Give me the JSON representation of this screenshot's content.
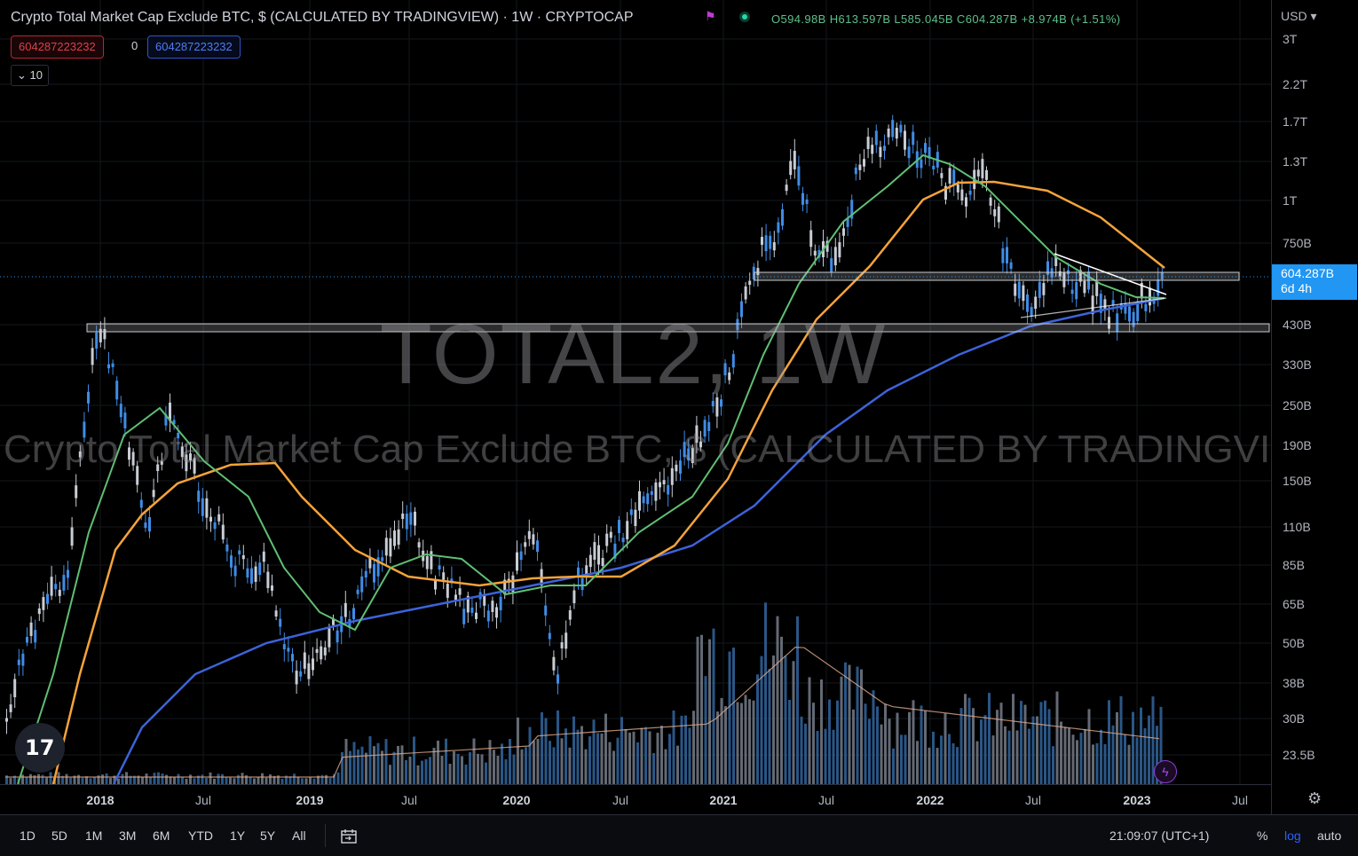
{
  "legend": {
    "title_prefix": "Crypto Total Market Cap Exclude BTC, $ (CALCULATED BY TRADINGVIEW) · 1W · ",
    "source": "CRYPTOCAP",
    "ohlc": "O594.98B H613.597B L585.045B C604.287B +8.974B (+1.51%)",
    "badge_sell": "604287223232",
    "badge_spread": "0",
    "badge_buy": "604287223232",
    "collapse_count": "10"
  },
  "watermark": {
    "symbol": "TOTAL2, 1W",
    "description": "Crypto Total Market Cap Exclude BTC, $ (CALCULATED BY TRADINGVIEW)"
  },
  "price_scale": {
    "currency": "USD",
    "labels": [
      "3T",
      "2.2T",
      "1.7T",
      "1.3T",
      "1T",
      "750B",
      "430B",
      "330B",
      "250B",
      "190B",
      "150B",
      "110B",
      "85B",
      "65B",
      "50B",
      "38B",
      "30B",
      "23.5B"
    ],
    "last_price": "604.287B",
    "countdown": "6d 4h"
  },
  "time_axis": {
    "labels": [
      {
        "text": "2018",
        "year": true
      },
      {
        "text": "Jul",
        "year": false
      },
      {
        "text": "2019",
        "year": true
      },
      {
        "text": "Jul",
        "year": false
      },
      {
        "text": "2020",
        "year": true
      },
      {
        "text": "Jul",
        "year": false
      },
      {
        "text": "2021",
        "year": true
      },
      {
        "text": "Jul",
        "year": false
      },
      {
        "text": "2022",
        "year": true
      },
      {
        "text": "Jul",
        "year": false
      },
      {
        "text": "2023",
        "year": true
      },
      {
        "text": "Jul",
        "year": false
      }
    ]
  },
  "toolbar": {
    "ranges": [
      "1D",
      "5D",
      "1M",
      "3M",
      "6M",
      "YTD",
      "1Y",
      "5Y",
      "All"
    ],
    "clock": "21:09:07 (UTC+1)",
    "percent": "%",
    "log": "log",
    "auto": "auto"
  },
  "colors": {
    "up": "#3f8ce6",
    "down": "#c8ccd4",
    "ma_fast": "#5fbf73",
    "ma_mid": "#f5a33a",
    "ma_slow": "#3d63d9",
    "accent": "#2196f3"
  },
  "chart_data": {
    "type": "line",
    "title": "TOTAL2, 1W",
    "log_scale": true,
    "x": [
      "2018-01",
      "2018-04",
      "2018-07",
      "2018-10",
      "2019-01",
      "2019-04",
      "2019-07",
      "2019-10",
      "2020-01",
      "2020-03",
      "2020-07",
      "2020-10",
      "2021-01",
      "2021-05",
      "2021-07",
      "2021-11",
      "2022-01",
      "2022-04",
      "2022-06",
      "2022-08",
      "2022-11",
      "2023-01",
      "2023-02"
    ],
    "series": [
      {
        "values": [
          230,
          190,
          150,
          110,
          45,
          90,
          120,
          75,
          75,
          45,
          120,
          180,
          300,
          1300,
          750,
          1600,
          1200,
          1000,
          450,
          700,
          450,
          470,
          604
        ]
      }
    ],
    "ylim": [
      "23.5B",
      "3T"
    ]
  }
}
